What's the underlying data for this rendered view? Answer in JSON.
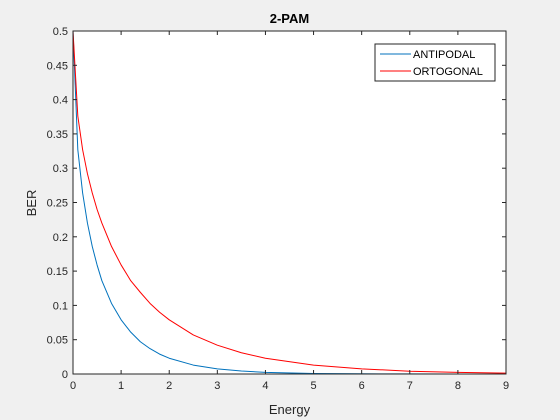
{
  "chart_data": {
    "type": "line",
    "title": "2-PAM",
    "xlabel": "Energy",
    "ylabel": "BER",
    "xlim": [
      0,
      9
    ],
    "ylim": [
      0,
      0.5
    ],
    "xticks": [
      "0",
      "1",
      "2",
      "3",
      "4",
      "5",
      "6",
      "7",
      "8",
      "9"
    ],
    "yticks": [
      "0",
      "0.05",
      "0.1",
      "0.15",
      "0.2",
      "0.25",
      "0.3",
      "0.35",
      "0.4",
      "0.45",
      "0.5"
    ],
    "grid": false,
    "legend_position": "top-right",
    "x": [
      0,
      0.1,
      0.2,
      0.3,
      0.4,
      0.5,
      0.6,
      0.8,
      1.0,
      1.2,
      1.4,
      1.6,
      1.8,
      2.0,
      2.5,
      3.0,
      3.5,
      4.0,
      5.0,
      6.0,
      7.0,
      8.0,
      9.0
    ],
    "series": [
      {
        "name": "ANTIPODAL",
        "color": "#0072bd",
        "values": [
          0.5,
          0.327,
          0.264,
          0.22,
          0.186,
          0.159,
          0.136,
          0.103,
          0.079,
          0.061,
          0.047,
          0.037,
          0.029,
          0.023,
          0.013,
          0.0075,
          0.0044,
          0.0023,
          0.0008,
          0.0003,
          0.0001,
          0.0,
          0.0
        ]
      },
      {
        "name": "ORTOGONAL",
        "color": "#ff0000",
        "values": [
          0.5,
          0.376,
          0.327,
          0.292,
          0.264,
          0.24,
          0.22,
          0.186,
          0.159,
          0.136,
          0.119,
          0.103,
          0.09,
          0.079,
          0.057,
          0.042,
          0.031,
          0.023,
          0.013,
          0.0075,
          0.0041,
          0.0023,
          0.0013
        ]
      }
    ]
  }
}
